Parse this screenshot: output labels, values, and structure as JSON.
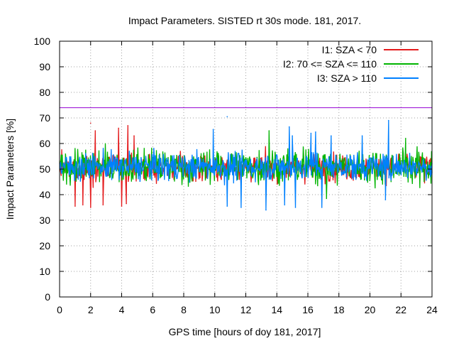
{
  "chart_data": {
    "type": "line",
    "title": "Impact Parameters. SISTED rt 30s mode. 181, 2017.",
    "xlabel": "GPS time [hours of doy 181, 2017]",
    "ylabel": "Impact Parameters [%]",
    "xlim": [
      0,
      24
    ],
    "ylim": [
      0,
      100
    ],
    "x_ticks": [
      0,
      2,
      4,
      6,
      8,
      10,
      12,
      14,
      16,
      18,
      20,
      22,
      24
    ],
    "y_ticks": [
      0,
      10,
      20,
      30,
      40,
      50,
      60,
      70,
      80,
      90,
      100
    ],
    "grid": true,
    "legend_position": "top-right",
    "reference_line": {
      "value": 74,
      "color": "#9400d3"
    },
    "series": [
      {
        "name": "I1: SZA < 70",
        "color": "#e41a1c",
        "x_range": [
          0,
          24
        ],
        "mean": 50.5,
        "typical_band": [
          44,
          57
        ],
        "extremes": [
          {
            "x": 1.0,
            "y": 35.5
          },
          {
            "x": 1.5,
            "y": 36
          },
          {
            "x": 2.0,
            "y": 68
          },
          {
            "x": 2.0,
            "y": 35
          },
          {
            "x": 2.3,
            "y": 65
          },
          {
            "x": 2.8,
            "y": 36
          },
          {
            "x": 3.8,
            "y": 66
          },
          {
            "x": 4.0,
            "y": 35.5
          },
          {
            "x": 4.3,
            "y": 36.5
          },
          {
            "x": 4.4,
            "y": 67
          },
          {
            "x": 4.8,
            "y": 63
          }
        ]
      },
      {
        "name": "I2: 70 <= SZA <= 110",
        "color": "#00b400",
        "x_range": [
          0,
          24
        ],
        "mean": 51,
        "typical_band": [
          43,
          60
        ],
        "extremes": [
          {
            "x": 13.5,
            "y": 65
          },
          {
            "x": 17.2,
            "y": 38.5
          },
          {
            "x": 22.3,
            "y": 62
          }
        ]
      },
      {
        "name": "I3: SZA > 110",
        "color": "#0080ff",
        "x_range": [
          0,
          24
        ],
        "mean": 51,
        "typical_band": [
          44,
          58
        ],
        "extremes": [
          {
            "x": 9.9,
            "y": 65.5
          },
          {
            "x": 10.8,
            "y": 70.5
          },
          {
            "x": 10.8,
            "y": 35.5
          },
          {
            "x": 11.7,
            "y": 35
          },
          {
            "x": 13.3,
            "y": 34
          },
          {
            "x": 14.5,
            "y": 36
          },
          {
            "x": 14.8,
            "y": 66.5
          },
          {
            "x": 15.0,
            "y": 63
          },
          {
            "x": 15.2,
            "y": 35
          },
          {
            "x": 16.2,
            "y": 64
          },
          {
            "x": 16.5,
            "y": 64.5
          },
          {
            "x": 16.9,
            "y": 35
          },
          {
            "x": 17.5,
            "y": 63
          },
          {
            "x": 19.5,
            "y": 63
          },
          {
            "x": 21.2,
            "y": 69
          },
          {
            "x": 21.0,
            "y": 38
          }
        ]
      }
    ]
  }
}
